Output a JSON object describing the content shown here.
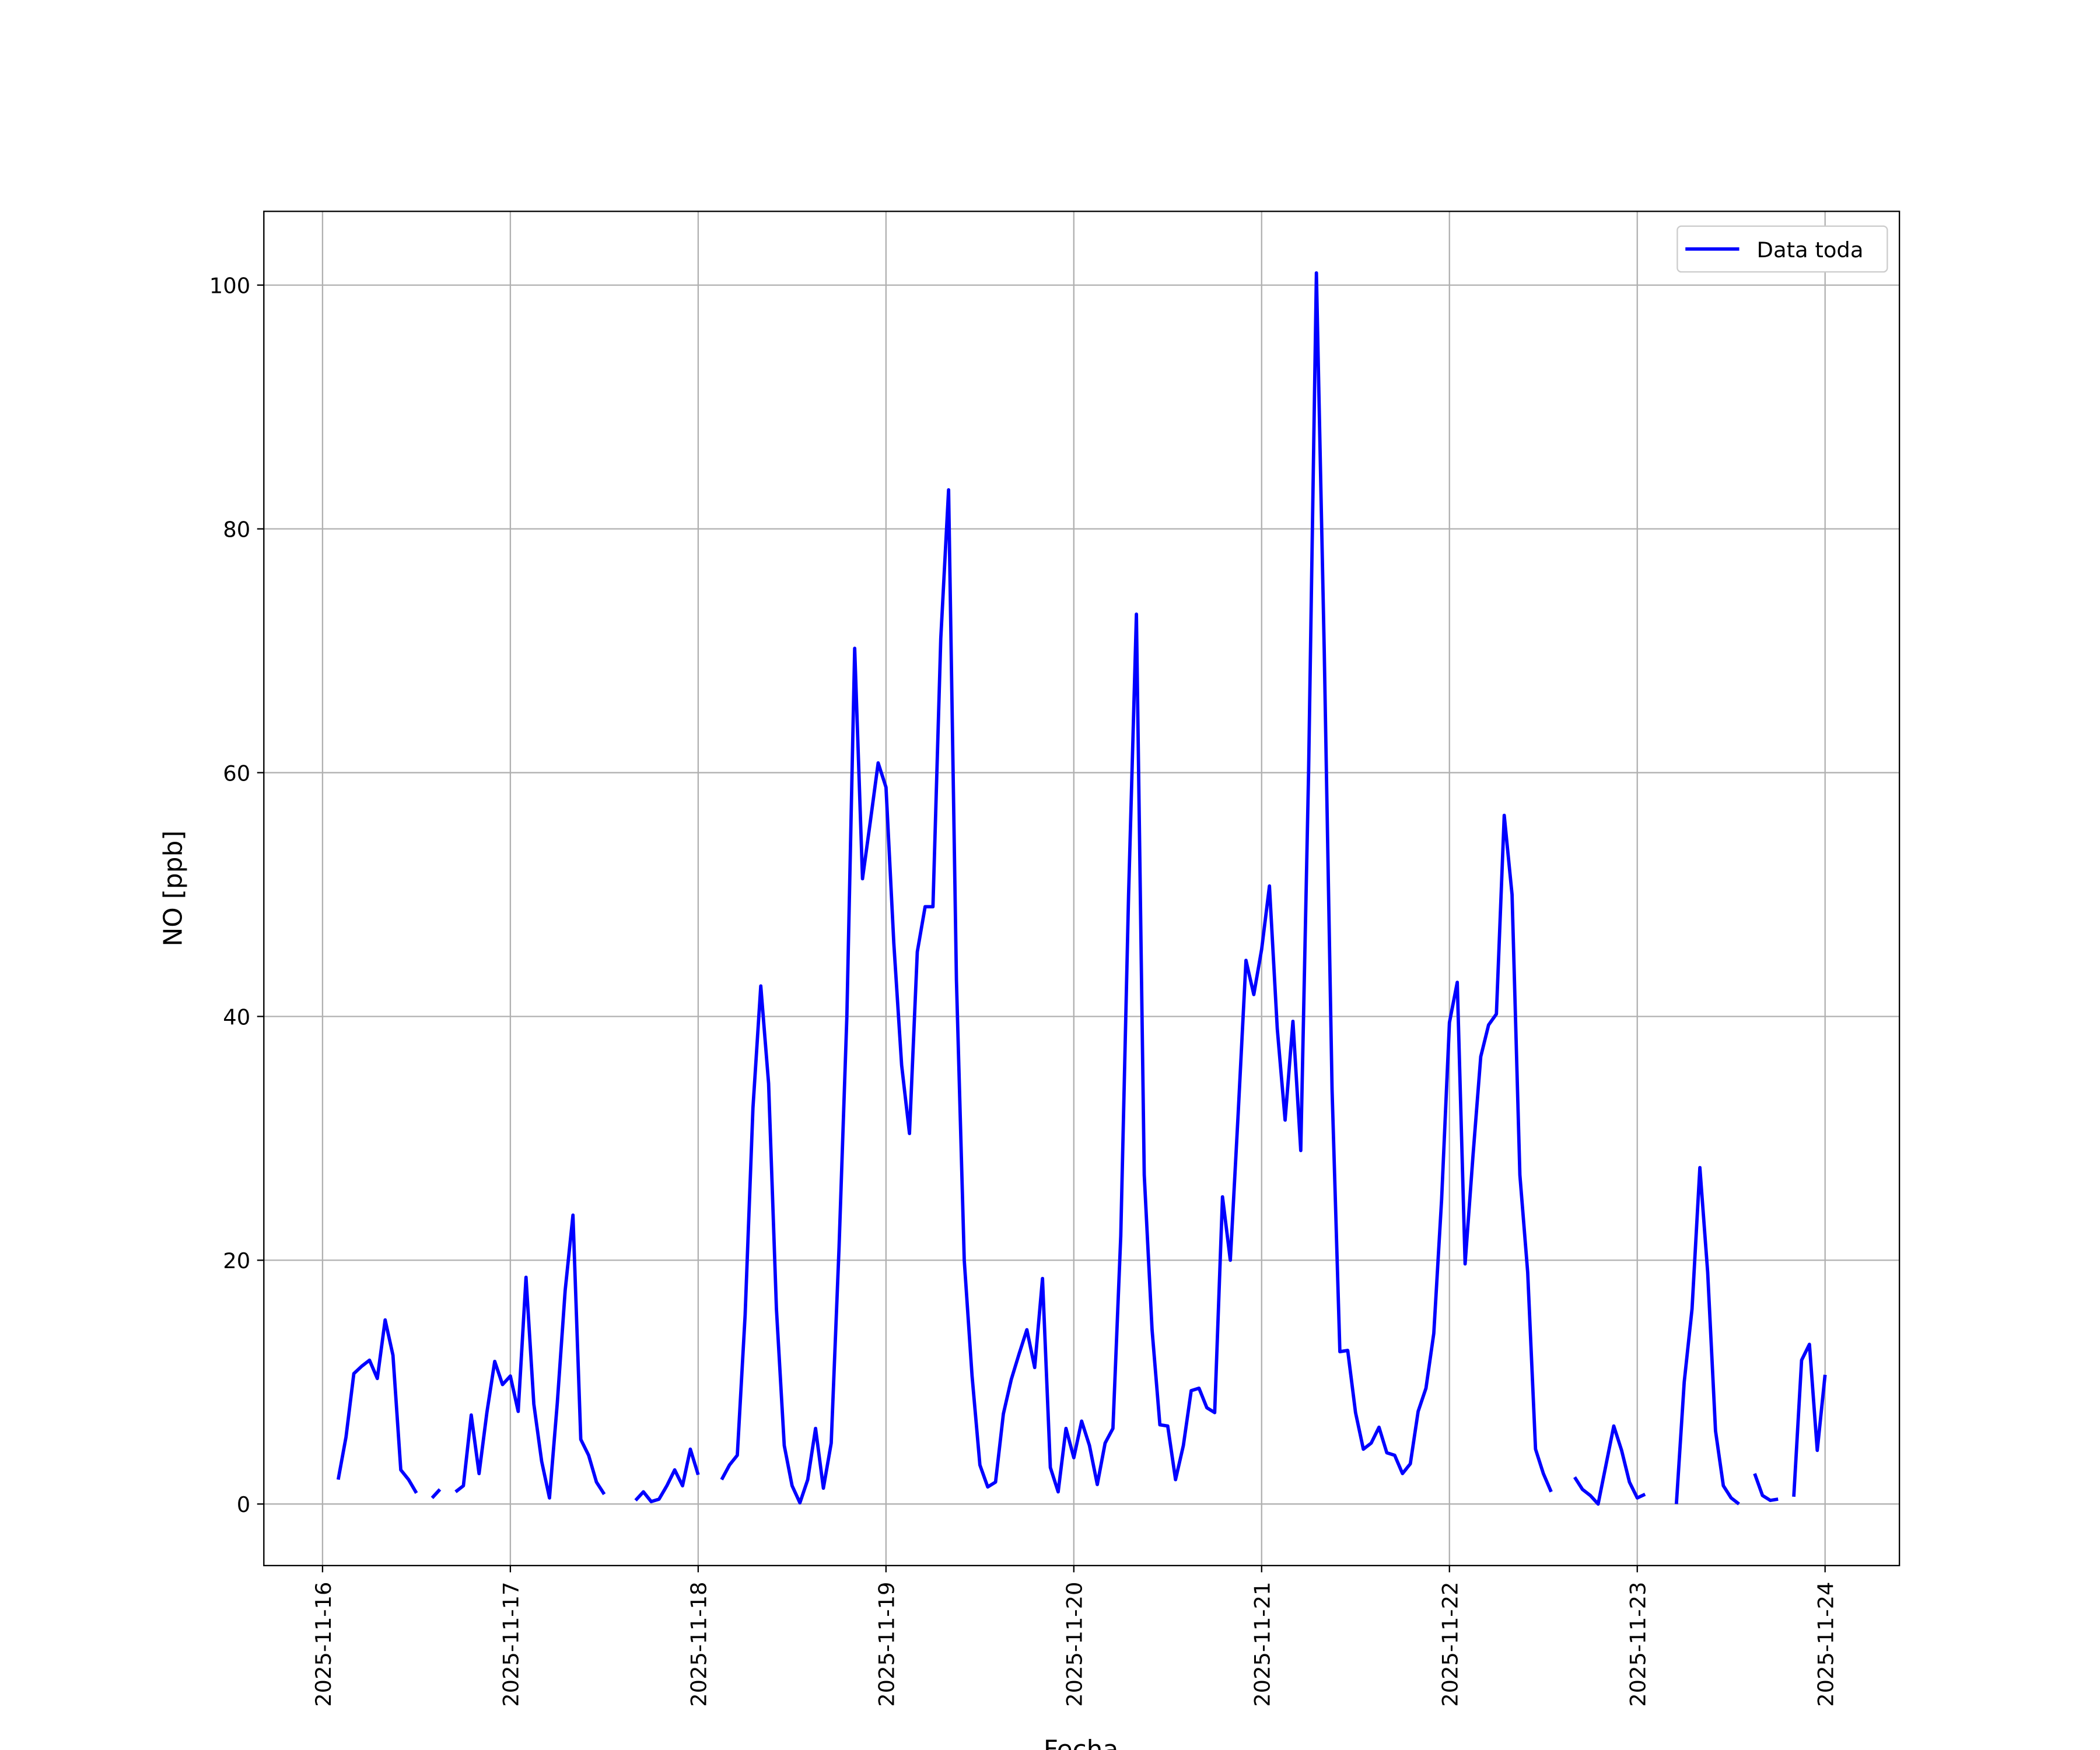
{
  "chart_data": {
    "type": "line",
    "xlabel": "Fecha",
    "ylabel": "NO [ppb]",
    "grid": true,
    "legend": "upper right",
    "xlim": [
      "2025-11-15T16:30",
      "2025-11-24T09:30"
    ],
    "xticks": [
      "2025-11-16",
      "2025-11-17",
      "2025-11-18",
      "2025-11-19",
      "2025-11-20",
      "2025-11-21",
      "2025-11-22",
      "2025-11-23",
      "2025-11-24"
    ],
    "ylim": [
      -5.05,
      106.05
    ],
    "yticks": [
      0,
      20,
      40,
      60,
      80,
      100
    ],
    "x": [
      "2025-11-16T02:00",
      "2025-11-16T03:00",
      "2025-11-16T04:00",
      "2025-11-16T05:00",
      "2025-11-16T06:00",
      "2025-11-16T07:00",
      "2025-11-16T08:00",
      "2025-11-16T09:00",
      "2025-11-16T10:00",
      "2025-11-16T11:00",
      "2025-11-16T12:00",
      "2025-11-16T13:00",
      "2025-11-16T14:00",
      "2025-11-16T15:00",
      "2025-11-16T16:00",
      "2025-11-16T17:00",
      "2025-11-16T18:00",
      "2025-11-16T19:00",
      "2025-11-16T20:00",
      "2025-11-16T21:00",
      "2025-11-16T22:00",
      "2025-11-16T23:00",
      "2025-11-17T00:00",
      "2025-11-17T01:00",
      "2025-11-17T02:00",
      "2025-11-17T03:00",
      "2025-11-17T04:00",
      "2025-11-17T05:00",
      "2025-11-17T06:00",
      "2025-11-17T07:00",
      "2025-11-17T08:00",
      "2025-11-17T09:00",
      "2025-11-17T10:00",
      "2025-11-17T11:00",
      "2025-11-17T12:00",
      "2025-11-17T13:00",
      "2025-11-17T14:00",
      "2025-11-17T15:00",
      "2025-11-17T16:00",
      "2025-11-17T17:00",
      "2025-11-17T18:00",
      "2025-11-17T19:00",
      "2025-11-17T20:00",
      "2025-11-17T21:00",
      "2025-11-17T22:00",
      "2025-11-17T23:00",
      "2025-11-18T00:00",
      "2025-11-18T01:00",
      "2025-11-18T02:00",
      "2025-11-18T03:00",
      "2025-11-18T04:00",
      "2025-11-18T05:00",
      "2025-11-18T06:00",
      "2025-11-18T07:00",
      "2025-11-18T08:00",
      "2025-11-18T09:00",
      "2025-11-18T10:00",
      "2025-11-18T11:00",
      "2025-11-18T12:00",
      "2025-11-18T13:00",
      "2025-11-18T14:00",
      "2025-11-18T15:00",
      "2025-11-18T16:00",
      "2025-11-18T17:00",
      "2025-11-18T18:00",
      "2025-11-18T19:00",
      "2025-11-18T20:00",
      "2025-11-18T21:00",
      "2025-11-18T22:00",
      "2025-11-18T23:00",
      "2025-11-19T00:00",
      "2025-11-19T01:00",
      "2025-11-19T02:00",
      "2025-11-19T03:00",
      "2025-11-19T04:00",
      "2025-11-19T05:00",
      "2025-11-19T06:00",
      "2025-11-19T07:00",
      "2025-11-19T08:00",
      "2025-11-19T09:00",
      "2025-11-19T10:00",
      "2025-11-19T11:00",
      "2025-11-19T12:00",
      "2025-11-19T13:00",
      "2025-11-19T14:00",
      "2025-11-19T15:00",
      "2025-11-19T16:00",
      "2025-11-19T17:00",
      "2025-11-19T18:00",
      "2025-11-19T19:00",
      "2025-11-19T20:00",
      "2025-11-19T21:00",
      "2025-11-19T22:00",
      "2025-11-19T23:00",
      "2025-11-20T00:00",
      "2025-11-20T01:00",
      "2025-11-20T02:00",
      "2025-11-20T03:00",
      "2025-11-20T04:00",
      "2025-11-20T05:00",
      "2025-11-20T06:00",
      "2025-11-20T07:00",
      "2025-11-20T08:00",
      "2025-11-20T09:00",
      "2025-11-20T10:00",
      "2025-11-20T11:00",
      "2025-11-20T12:00",
      "2025-11-20T13:00",
      "2025-11-20T14:00",
      "2025-11-20T15:00",
      "2025-11-20T16:00",
      "2025-11-20T17:00",
      "2025-11-20T18:00",
      "2025-11-20T19:00",
      "2025-11-20T20:00",
      "2025-11-20T21:00",
      "2025-11-20T22:00",
      "2025-11-20T23:00",
      "2025-11-21T00:00",
      "2025-11-21T01:00",
      "2025-11-21T02:00",
      "2025-11-21T03:00",
      "2025-11-21T04:00",
      "2025-11-21T05:00",
      "2025-11-21T06:00",
      "2025-11-21T07:00",
      "2025-11-21T08:00",
      "2025-11-21T09:00",
      "2025-11-21T10:00",
      "2025-11-21T11:00",
      "2025-11-21T12:00",
      "2025-11-21T13:00",
      "2025-11-21T14:00",
      "2025-11-21T15:00",
      "2025-11-21T16:00",
      "2025-11-21T17:00",
      "2025-11-21T18:00",
      "2025-11-21T19:00",
      "2025-11-21T20:00",
      "2025-11-21T21:00",
      "2025-11-21T22:00",
      "2025-11-21T23:00",
      "2025-11-22T00:00",
      "2025-11-22T01:00",
      "2025-11-22T02:00",
      "2025-11-22T03:00",
      "2025-11-22T04:00",
      "2025-11-22T05:00",
      "2025-11-22T06:00",
      "2025-11-22T07:00",
      "2025-11-22T08:00",
      "2025-11-22T09:00",
      "2025-11-22T10:00",
      "2025-11-22T11:00",
      "2025-11-22T12:00",
      "2025-11-22T13:00",
      "2025-11-22T14:00",
      "2025-11-22T15:00",
      "2025-11-22T16:00",
      "2025-11-22T17:00",
      "2025-11-22T18:00",
      "2025-11-22T19:00",
      "2025-11-22T20:00",
      "2025-11-22T21:00",
      "2025-11-22T22:00",
      "2025-11-22T23:00",
      "2025-11-23T00:00",
      "2025-11-23T01:00",
      "2025-11-23T02:00",
      "2025-11-23T03:00",
      "2025-11-23T04:00",
      "2025-11-23T05:00",
      "2025-11-23T06:00",
      "2025-11-23T07:00",
      "2025-11-23T08:00",
      "2025-11-23T09:00",
      "2025-11-23T10:00",
      "2025-11-23T11:00",
      "2025-11-23T12:00",
      "2025-11-23T13:00",
      "2025-11-23T14:00",
      "2025-11-23T15:00",
      "2025-11-23T16:00",
      "2025-11-23T17:00",
      "2025-11-23T18:00",
      "2025-11-23T19:00",
      "2025-11-23T20:00",
      "2025-11-23T21:00",
      "2025-11-23T22:00",
      "2025-11-23T23:00",
      "2025-11-24T00:00"
    ],
    "series": [
      {
        "name": "Data toda",
        "color": "#0000ff",
        "values": [
          2.0,
          5.5,
          10.7,
          11.3,
          11.8,
          10.3,
          15.1,
          12.2,
          2.8,
          2.0,
          0.9,
          null,
          0.5,
          1.2,
          null,
          1.0,
          1.5,
          7.3,
          2.5,
          7.5,
          11.7,
          9.8,
          10.5,
          7.6,
          18.6,
          8.2,
          3.5,
          0.5,
          8.3,
          17.5,
          23.7,
          5.3,
          4.0,
          1.8,
          0.8,
          null,
          null,
          null,
          0.3,
          1.0,
          0.2,
          0.4,
          1.5,
          2.8,
          1.5,
          4.5,
          2.4,
          null,
          null,
          2.0,
          3.2,
          4.0,
          15.5,
          32.5,
          42.5,
          34.5,
          16.0,
          4.8,
          1.5,
          0.1,
          2.0,
          6.2,
          1.3,
          5.0,
          21.0,
          40.0,
          70.2,
          51.3,
          56.0,
          60.8,
          58.8,
          46.0,
          36.0,
          30.4,
          45.3,
          49.0,
          49.0,
          71.0,
          83.2,
          43.0,
          20.0,
          10.5,
          3.2,
          1.4,
          1.8,
          7.4,
          10.2,
          12.3,
          14.3,
          11.2,
          18.5,
          3.0,
          1.0,
          6.2,
          3.8,
          6.8,
          4.8,
          1.6,
          5.0,
          6.2,
          22.0,
          50.0,
          73.0,
          27.0,
          14.3,
          6.5,
          6.4,
          2.0,
          4.8,
          9.3,
          9.5,
          7.9,
          7.5,
          25.2,
          20.0,
          32.0,
          44.6,
          41.8,
          45.5,
          50.7,
          39.0,
          31.5,
          39.6,
          29.0,
          60.0,
          101.0,
          70.0,
          34.0,
          12.5,
          12.6,
          7.5,
          4.5,
          5.0,
          6.3,
          4.2,
          4.0,
          2.5,
          3.3,
          7.6,
          9.5,
          14.0,
          25.0,
          39.5,
          42.8,
          19.7,
          28.5,
          36.7,
          39.3,
          40.2,
          56.5,
          50.0,
          27.0,
          19.0,
          4.5,
          2.5,
          1.0,
          null,
          null,
          2.2,
          1.2,
          0.7,
          0.0,
          3.2,
          6.4,
          4.4,
          1.8,
          0.5,
          0.8,
          null,
          null,
          null,
          0.0,
          10.0,
          16.0,
          27.6,
          19.0,
          6.0,
          1.5,
          0.5,
          0.0,
          null,
          2.5,
          0.7,
          0.3,
          0.4,
          null,
          0.6,
          11.8,
          13.1,
          4.4,
          10.6
        ]
      }
    ]
  }
}
